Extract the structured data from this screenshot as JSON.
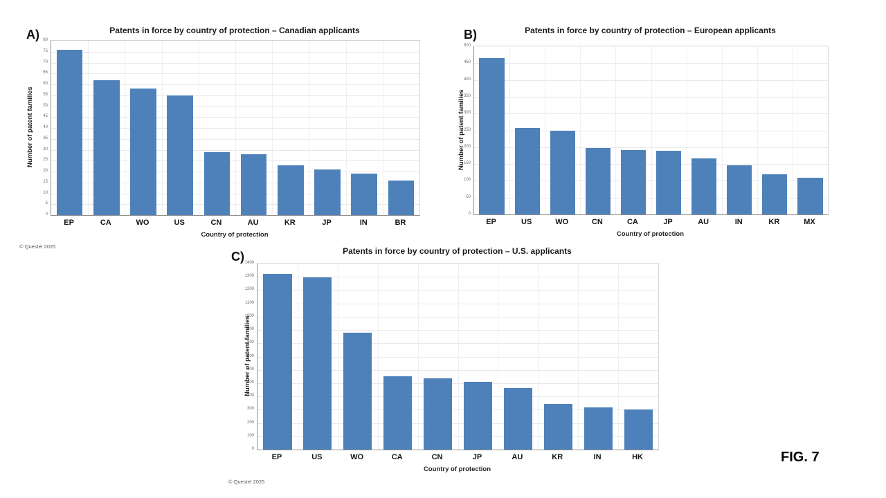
{
  "figure_label": "FIG. 7",
  "colors": {
    "bar": "#4E81BA",
    "gridline": "#e8e8e8",
    "axis_line": "#8f8f8f",
    "plot_border": "#d5d5d5"
  },
  "chart_data": [
    {
      "type": "bar",
      "panel_label": "A)",
      "title": "Patents in force by country of protection – Canadian applicants",
      "xlabel": "Country of protection",
      "ylabel": "Number of patent families",
      "categories": [
        "EP",
        "CA",
        "WO",
        "US",
        "CN",
        "AU",
        "KR",
        "JP",
        "IN",
        "BR"
      ],
      "values": [
        76,
        62,
        58,
        55,
        29,
        28,
        23,
        21,
        19,
        16
      ],
      "ylim": [
        0,
        80
      ],
      "ytick_step": 5,
      "grid": true,
      "legend": null,
      "bar_color": "#4E81BA",
      "copyright": "© Questel 2025"
    },
    {
      "type": "bar",
      "panel_label": "B)",
      "title": "Patents in force by country of protection – European applicants",
      "xlabel": "Country of protection",
      "ylabel": "Number of patent families",
      "categories": [
        "EP",
        "US",
        "WO",
        "CN",
        "CA",
        "JP",
        "AU",
        "IN",
        "KR",
        "MX"
      ],
      "values": [
        465,
        258,
        250,
        198,
        191,
        190,
        167,
        146,
        119,
        109
      ],
      "ylim": [
        0,
        500
      ],
      "ytick_step": 50,
      "grid": true,
      "legend": null,
      "bar_color": "#4E81BA",
      "copyright": null
    },
    {
      "type": "bar",
      "panel_label": "C)",
      "title": "Patents in force by country of protection – U.S. applicants",
      "xlabel": "Country of protection",
      "ylabel": "Number of patent families",
      "categories": [
        "EP",
        "US",
        "WO",
        "CA",
        "CN",
        "JP",
        "AU",
        "KR",
        "IN",
        "HK"
      ],
      "values": [
        1320,
        1295,
        880,
        550,
        535,
        510,
        462,
        345,
        316,
        302
      ],
      "ylim": [
        0,
        1400
      ],
      "ytick_step": 100,
      "grid": true,
      "legend": null,
      "bar_color": "#4E81BA",
      "copyright": "© Questel 2025"
    }
  ]
}
